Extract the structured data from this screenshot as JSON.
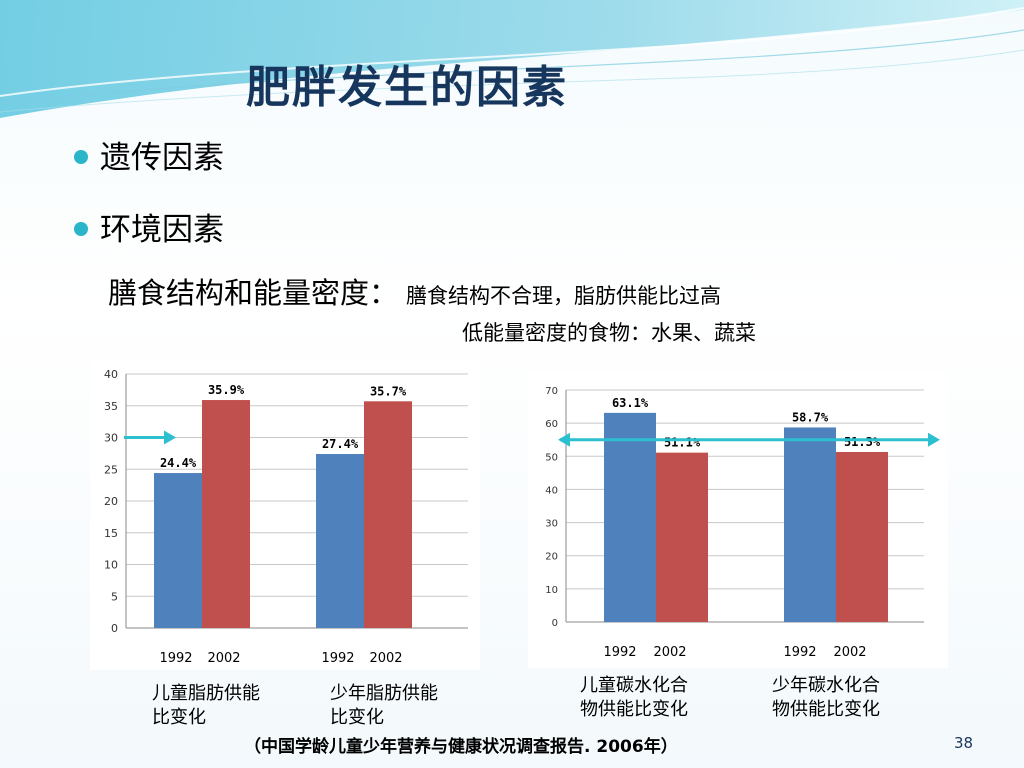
{
  "slide": {
    "title": "肥胖发生的因素",
    "bullets": [
      "遗传因素",
      "环境因素"
    ],
    "sub_heading": "膳食结构和能量密度：",
    "sub_detail": "膳食结构不合理，脂肪供能比过高",
    "sub_detail2": "低能量密度的食物：水果、蔬菜",
    "citation": "（中国学龄儿童少年营养与健康状况调查报告. 2006年）",
    "page_number": "38"
  },
  "colors": {
    "blue": "#4f81bd",
    "red": "#c0504d",
    "arrow": "#2bbfd0",
    "title": "#17365d"
  },
  "chart_data": [
    {
      "type": "bar",
      "categories": [
        "儿童脂肪供能比变化",
        "少年脂肪供能比变化"
      ],
      "year_labels": [
        "1992",
        "2002"
      ],
      "series": [
        {
          "values": [
            24.4,
            27.4
          ],
          "labels": [
            "24.4%",
            "27.4%"
          ]
        },
        {
          "values": [
            35.9,
            35.7
          ],
          "labels": [
            "35.9%",
            "35.7%"
          ]
        }
      ],
      "ylim": [
        0,
        40
      ],
      "yticks": [
        0,
        5,
        10,
        15,
        20,
        25,
        30,
        35,
        40
      ],
      "reference_line": 30,
      "grid": true,
      "category_labels_lines": [
        [
          "儿童脂肪供能",
          "比变化"
        ],
        [
          "少年脂肪供能",
          "比变化"
        ]
      ]
    },
    {
      "type": "bar",
      "categories": [
        "儿童碳水化合物供能比变化",
        "少年碳水化合物供能比变化"
      ],
      "year_labels": [
        "1992",
        "2002"
      ],
      "series": [
        {
          "values": [
            63.1,
            58.7
          ],
          "labels": [
            "63.1%",
            "58.7%"
          ]
        },
        {
          "values": [
            51.1,
            51.3
          ],
          "labels": [
            "51.1%",
            "51.3%"
          ]
        }
      ],
      "ylim": [
        0,
        70
      ],
      "yticks": [
        0,
        10,
        20,
        30,
        40,
        50,
        60,
        70
      ],
      "reference_line": 55,
      "grid": true,
      "category_labels_lines": [
        [
          "儿童碳水化合",
          "物供能比变化"
        ],
        [
          "少年碳水化合",
          "物供能比变化"
        ]
      ]
    }
  ]
}
